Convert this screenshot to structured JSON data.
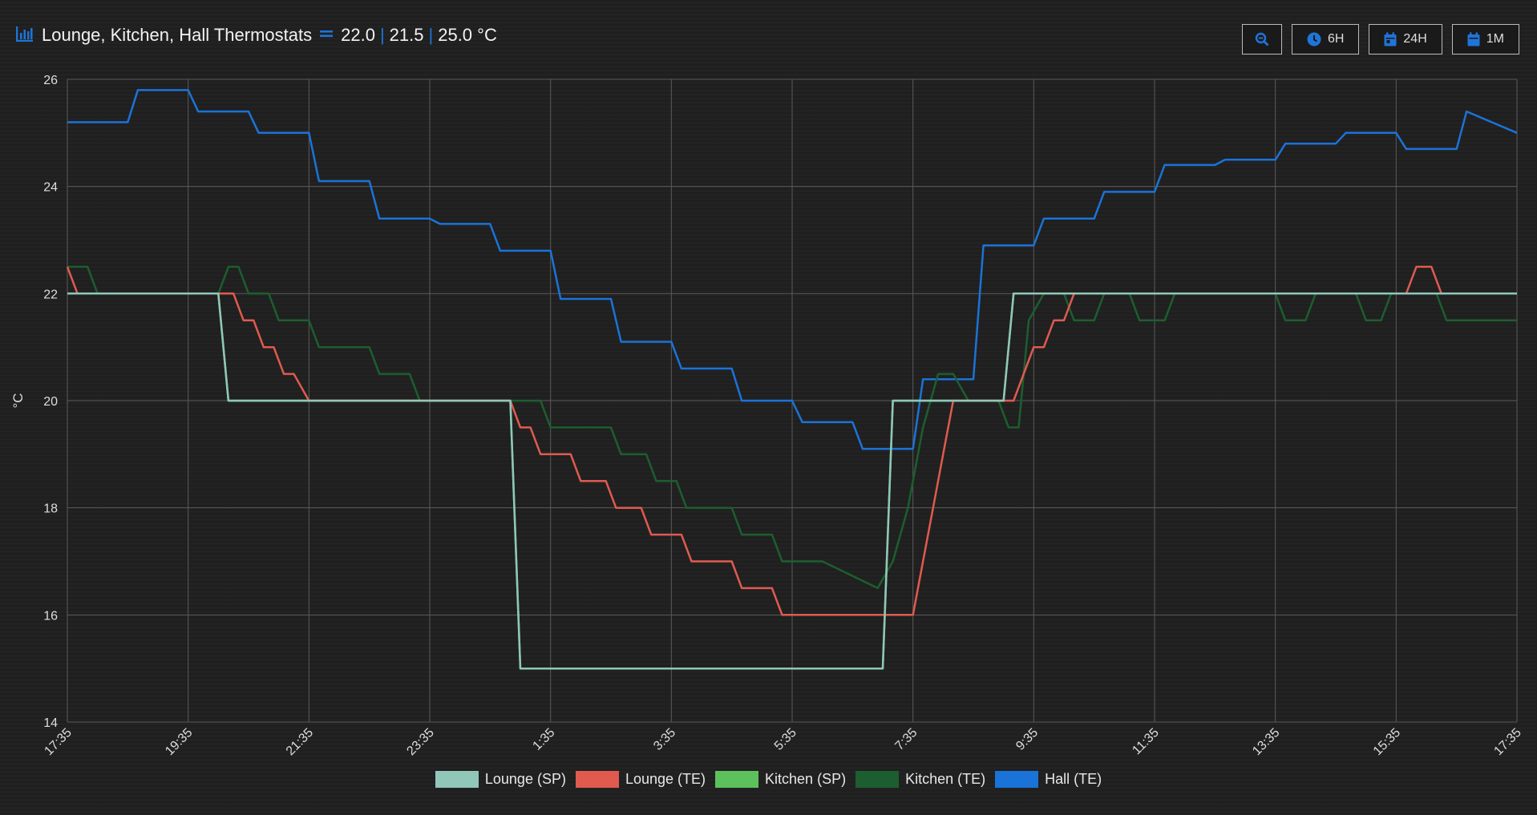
{
  "header": {
    "title": "Lounge, Kitchen, Hall Thermostats",
    "value1": "22.0",
    "value2": "21.5",
    "value3": "25.0 °C",
    "divider": "|",
    "icon": "chart-bar-icon",
    "equals_icon": "equals-icon"
  },
  "buttons": {
    "zoom_icon": "zoom-out-icon",
    "h6_label": "6H",
    "h24_label": "24H",
    "m1_label": "1M"
  },
  "colors": {
    "lounge_sp": "#90c7b9",
    "lounge_te": "#e05a50",
    "kitchen_sp": "#5cc15c",
    "kitchen_te": "#1c5e2f",
    "hall_te": "#1a73d9",
    "accent": "#1f74d8"
  },
  "chart_data": {
    "type": "line",
    "ylabel": "°C",
    "xlabel": "",
    "ylim": [
      14,
      26
    ],
    "y_ticks": [
      14,
      16,
      18,
      20,
      22,
      24,
      26
    ],
    "x_range_hours": [
      17.583,
      41.583
    ],
    "x_ticks": [
      "17:35",
      "19:35",
      "21:35",
      "23:35",
      "1:35",
      "3:35",
      "5:35",
      "7:35",
      "9:35",
      "11:35",
      "13:35",
      "15:35",
      "17:35"
    ],
    "grid": true,
    "legend_position": "bottom",
    "series": [
      {
        "name": "Lounge (SP)",
        "color": "#90c7b9",
        "x": [
          17.583,
          20.083,
          20.25,
          24.917,
          25.083,
          31.083,
          31.25,
          33.083,
          33.25,
          41.583
        ],
        "values": [
          22,
          22,
          20,
          20,
          15,
          15,
          20,
          20,
          22,
          22
        ]
      },
      {
        "name": "Lounge (TE)",
        "color": "#e05a50",
        "x": [
          17.583,
          17.75,
          20.083,
          20.333,
          20.5,
          20.667,
          20.833,
          21.0,
          21.167,
          21.333,
          21.583,
          24.917,
          25.083,
          25.25,
          25.417,
          25.917,
          26.083,
          26.5,
          26.667,
          27.083,
          27.25,
          27.75,
          27.917,
          28.583,
          28.75,
          29.25,
          29.417,
          30.75,
          30.917,
          31.583,
          31.75,
          31.917,
          32.083,
          32.25,
          33.083,
          33.25,
          33.583,
          33.75,
          33.917,
          34.083,
          34.25,
          34.583,
          39.75,
          39.917,
          40.167,
          40.333,
          41.583
        ],
        "values": [
          22.5,
          22,
          22,
          22,
          21.5,
          21.5,
          21,
          21,
          20.5,
          20.5,
          20,
          20,
          19.5,
          19.5,
          19,
          19,
          18.5,
          18.5,
          18,
          18,
          17.5,
          17.5,
          17,
          17,
          16.5,
          16.5,
          16,
          16,
          16,
          16,
          17,
          18,
          19,
          20,
          20,
          20,
          21,
          21,
          21.5,
          21.5,
          22,
          22,
          22,
          22.5,
          22.5,
          22,
          22
        ]
      },
      {
        "name": "Kitchen (SP)",
        "color": "#5cc15c",
        "x": [
          17.583,
          20.083,
          20.25,
          24.917,
          25.083,
          31.083,
          31.25,
          33.083,
          33.25,
          41.583
        ],
        "values": [
          22,
          22,
          20,
          20,
          15,
          15,
          20,
          20,
          22,
          22
        ]
      },
      {
        "name": "Kitchen (TE)",
        "color": "#1c5e2f",
        "x": [
          17.583,
          17.917,
          18.083,
          20.083,
          20.25,
          20.417,
          20.583,
          20.917,
          21.083,
          21.583,
          21.75,
          22.583,
          22.75,
          23.25,
          23.417,
          24.917,
          25.417,
          25.583,
          26.583,
          26.75,
          27.167,
          27.333,
          27.667,
          27.833,
          28.583,
          28.75,
          29.25,
          29.417,
          29.917,
          30.083,
          31.0,
          31.25,
          31.5,
          31.75,
          32.0,
          32.25,
          32.5,
          32.667,
          33.0,
          33.167,
          33.333,
          33.5,
          33.75,
          34.083,
          34.25,
          34.583,
          34.75,
          35.167,
          35.333,
          35.75,
          35.917,
          36.25,
          36.417,
          37.583,
          37.75,
          38.083,
          38.25,
          38.917,
          39.083,
          39.333,
          39.5,
          40.25,
          40.417,
          41.583
        ],
        "values": [
          22.5,
          22.5,
          22,
          22,
          22.5,
          22.5,
          22,
          22,
          21.5,
          21.5,
          21,
          21,
          20.5,
          20.5,
          20,
          20,
          20,
          19.5,
          19.5,
          19,
          19,
          18.5,
          18.5,
          18,
          18,
          17.5,
          17.5,
          17,
          17,
          17,
          16.5,
          17,
          18,
          19.5,
          20.5,
          20.5,
          20,
          20,
          20,
          19.5,
          19.5,
          21.5,
          22,
          22,
          21.5,
          21.5,
          22,
          22,
          21.5,
          21.5,
          22,
          22,
          22,
          22,
          21.5,
          21.5,
          22,
          22,
          21.5,
          21.5,
          22,
          22,
          21.5,
          21.5
        ]
      },
      {
        "name": "Hall (TE)",
        "color": "#1a73d9",
        "x": [
          17.583,
          18.583,
          18.75,
          19.583,
          19.75,
          20.583,
          20.75,
          21.583,
          21.75,
          22.583,
          22.75,
          23.583,
          23.75,
          24.583,
          24.75,
          25.583,
          25.75,
          26.583,
          26.75,
          27.583,
          27.75,
          28.583,
          28.75,
          29.583,
          29.75,
          30.583,
          30.75,
          31.583,
          31.75,
          32.583,
          32.75,
          33.583,
          33.75,
          34.583,
          34.75,
          35.583,
          35.75,
          36.583,
          36.75,
          37.583,
          37.75,
          38.583,
          38.75,
          39.583,
          39.75,
          40.583,
          40.75,
          41.583
        ],
        "values": [
          25.2,
          25.2,
          25.8,
          25.8,
          25.4,
          25.4,
          25.0,
          25.0,
          24.1,
          24.1,
          23.4,
          23.4,
          23.3,
          23.3,
          22.8,
          22.8,
          21.9,
          21.9,
          21.1,
          21.1,
          20.6,
          20.6,
          20.0,
          20.0,
          19.6,
          19.6,
          19.1,
          19.1,
          20.4,
          20.4,
          22.9,
          22.9,
          23.4,
          23.4,
          23.9,
          23.9,
          24.4,
          24.4,
          24.5,
          24.5,
          24.8,
          24.8,
          25.0,
          25.0,
          24.7,
          24.7,
          25.4,
          25.0
        ]
      }
    ]
  }
}
